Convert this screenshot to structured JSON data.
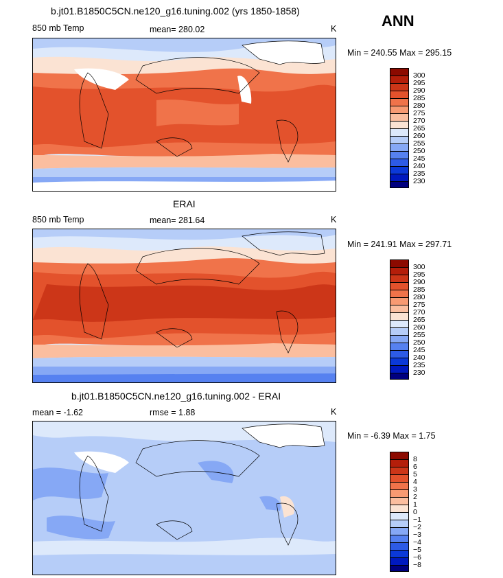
{
  "season": "ANN",
  "palettes": {
    "temp": [
      "#00007f",
      "#0019bf",
      "#0b39d8",
      "#2d5be6",
      "#5681f0",
      "#86a8f5",
      "#b6cdf8",
      "#dde9fb",
      "#fbe3d3",
      "#fbbe9f",
      "#f89a72",
      "#f0734a",
      "#e3522c",
      "#cc3618",
      "#b41e0a",
      "#8c0a00"
    ],
    "diff": [
      "#00007f",
      "#0019bf",
      "#0b39d8",
      "#2d5be6",
      "#5681f0",
      "#86a8f5",
      "#b6cdf8",
      "#dde9fb",
      "#fbe3d3",
      "#fbbe9f",
      "#f89a72",
      "#f0734a",
      "#e3522c",
      "#cc3618",
      "#b41e0a",
      "#8c0a00"
    ]
  },
  "panels": [
    {
      "title": "b.jt01.B1850C5CN.ne120_g16.tuning.002 (yrs 1850-1858)",
      "left": "850 mb Temp",
      "center": "mean= 280.02",
      "right": "K",
      "minmax": "Min = 240.55 Max = 295.15",
      "levels": [
        "300",
        "295",
        "290",
        "285",
        "280",
        "275",
        "270",
        "265",
        "260",
        "255",
        "250",
        "245",
        "240",
        "235",
        "230"
      ]
    },
    {
      "title": "ERAI",
      "left": "850 mb Temp",
      "center": "mean= 281.64",
      "right": "K",
      "minmax": "Min = 241.91 Max = 297.71",
      "levels": [
        "300",
        "295",
        "290",
        "285",
        "280",
        "275",
        "270",
        "265",
        "260",
        "255",
        "250",
        "245",
        "240",
        "235",
        "230"
      ]
    },
    {
      "title": "b.jt01.B1850C5CN.ne120_g16.tuning.002 - ERAI",
      "left": "mean =   -1.62",
      "center": "rmse =    1.88",
      "right": "K",
      "minmax": "Min =   -6.39 Max =    1.75",
      "levels": [
        "8",
        "6",
        "5",
        "4",
        "3",
        "2",
        "1",
        "0",
        "−1",
        "−2",
        "−3",
        "−4",
        "−5",
        "−6",
        "−8"
      ]
    }
  ],
  "chart_data": [
    {
      "type": "heatmap",
      "title": "b.jt01.B1850C5CN.ne120_g16.tuning.002 (yrs 1850-1858)",
      "variable": "850 mb Temp",
      "units": "K",
      "mean": 280.02,
      "min": 240.55,
      "max": 295.15,
      "contour_levels": [
        230,
        235,
        240,
        245,
        250,
        255,
        260,
        265,
        270,
        275,
        280,
        285,
        290,
        295,
        300
      ]
    },
    {
      "type": "heatmap",
      "title": "ERAI",
      "variable": "850 mb Temp",
      "units": "K",
      "mean": 281.64,
      "min": 241.91,
      "max": 297.71,
      "contour_levels": [
        230,
        235,
        240,
        245,
        250,
        255,
        260,
        265,
        270,
        275,
        280,
        285,
        290,
        295,
        300
      ]
    },
    {
      "type": "heatmap",
      "title": "b.jt01.B1850C5CN.ne120_g16.tuning.002 - ERAI",
      "units": "K",
      "mean": -1.62,
      "rmse": 1.88,
      "min": -6.39,
      "max": 1.75,
      "contour_levels": [
        -8,
        -6,
        -5,
        -4,
        -3,
        -2,
        -1,
        0,
        1,
        2,
        3,
        4,
        5,
        6,
        8
      ]
    }
  ]
}
